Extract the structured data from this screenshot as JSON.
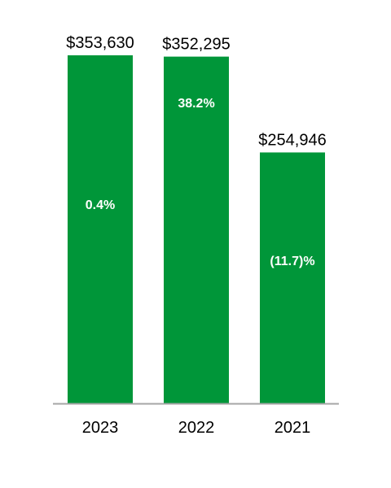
{
  "chart_data": {
    "type": "bar",
    "categories": [
      "2023",
      "2022",
      "2021"
    ],
    "values": [
      353630,
      352295,
      254946
    ],
    "value_labels": [
      "$353,630",
      "$352,295",
      "$254,946"
    ],
    "change_labels": [
      "0.4%",
      "38.2%",
      "(11.7)%"
    ],
    "ylim": [
      0,
      353630
    ],
    "grid": false,
    "legend": "none",
    "title": "",
    "xlabel": "",
    "ylabel": ""
  },
  "colors": {
    "bar": "#009639",
    "axis": "#a6a6a6",
    "text": "#000000",
    "bar_text": "#ffffff"
  }
}
